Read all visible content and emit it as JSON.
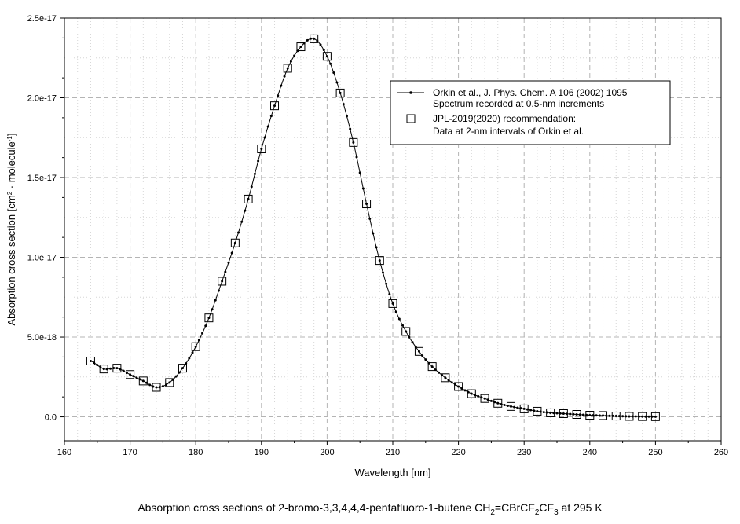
{
  "chart_data": {
    "type": "line",
    "title": "",
    "xlabel": "Wavelength [nm]",
    "ylabel": "Absorption cross section [cm2 · molecule-1]",
    "xlim": [
      160,
      260
    ],
    "ylim": [
      -1.5e-18,
      2.5e-17
    ],
    "x_ticks": [
      160,
      170,
      180,
      190,
      200,
      210,
      220,
      230,
      240,
      250,
      260
    ],
    "x_tick_labels": [
      "160",
      "170",
      "180",
      "190",
      "200",
      "210",
      "220",
      "230",
      "240",
      "250",
      "260"
    ],
    "y_ticks": [
      0,
      5e-18,
      1e-17,
      1.5e-17,
      2e-17,
      2.5e-17
    ],
    "y_tick_labels": [
      "0.0",
      "5.0e-18",
      "1.0e-17",
      "1.5e-17",
      "2.0e-17",
      "2.5e-17"
    ],
    "grid": true,
    "legend_position": "top-right",
    "series": [
      {
        "name": "Orkin et al., J. Phys. Chem. A 106 (2002) 1095",
        "name_line2": "Spectrum recorded at 0.5-nm increments",
        "style": "line-with-small-dots",
        "x": [
          164,
          166,
          168,
          170,
          172,
          174,
          176,
          178,
          180,
          182,
          184,
          186,
          188,
          190,
          192,
          194,
          196,
          198,
          200,
          202,
          204,
          206,
          208,
          210,
          212,
          214,
          216,
          218,
          220,
          222,
          224,
          226,
          228,
          230,
          232,
          234,
          236,
          238,
          240,
          242,
          244,
          246,
          248,
          250
        ],
        "y": [
          3.5e-18,
          3e-18,
          3.05e-18,
          2.65e-18,
          2.25e-18,
          1.85e-18,
          2.15e-18,
          3.05e-18,
          4.4e-18,
          6.2e-18,
          8.5e-18,
          1.09e-17,
          1.365e-17,
          1.68e-17,
          1.95e-17,
          2.185e-17,
          2.32e-17,
          2.37e-17,
          2.26e-17,
          2.03e-17,
          1.72e-17,
          1.335e-17,
          9.8e-18,
          7.1e-18,
          5.35e-18,
          4.1e-18,
          3.15e-18,
          2.45e-18,
          1.9e-18,
          1.45e-18,
          1.15e-18,
          8.5e-19,
          6.5e-19,
          5e-19,
          3.5e-19,
          2.5e-19,
          2e-19,
          1.5e-19,
          1e-19,
          8e-20,
          5e-20,
          3e-20,
          2e-20,
          1e-20
        ]
      },
      {
        "name": "JPL-2019(2020) recommendation:",
        "name_line2": "Data at 2-nm intervals of Orkin et al.",
        "style": "open-squares",
        "x": [
          164,
          166,
          168,
          170,
          172,
          174,
          176,
          178,
          180,
          182,
          184,
          186,
          188,
          190,
          192,
          194,
          196,
          198,
          200,
          202,
          204,
          206,
          208,
          210,
          212,
          214,
          216,
          218,
          220,
          222,
          224,
          226,
          228,
          230,
          232,
          234,
          236,
          238,
          240,
          242,
          244,
          246,
          248,
          250
        ],
        "y": [
          3.5e-18,
          3e-18,
          3.05e-18,
          2.65e-18,
          2.25e-18,
          1.85e-18,
          2.15e-18,
          3.05e-18,
          4.4e-18,
          6.2e-18,
          8.5e-18,
          1.09e-17,
          1.365e-17,
          1.68e-17,
          1.95e-17,
          2.185e-17,
          2.32e-17,
          2.37e-17,
          2.26e-17,
          2.03e-17,
          1.72e-17,
          1.335e-17,
          9.8e-18,
          7.1e-18,
          5.35e-18,
          4.1e-18,
          3.15e-18,
          2.45e-18,
          1.9e-18,
          1.45e-18,
          1.15e-18,
          8.5e-19,
          6.5e-19,
          5e-19,
          3.5e-19,
          2.5e-19,
          2e-19,
          1.5e-19,
          1e-19,
          8e-20,
          5e-20,
          3e-20,
          2e-20,
          1e-20
        ]
      }
    ]
  },
  "caption": {
    "text_before": "Absorption cross sections of 2-bromo-3,3,4,4,4-pentafluoro-1-butene CH",
    "sub1": "2",
    "mid1": "=CBrCF",
    "sub2": "2",
    "mid2": "CF",
    "sub3": "3",
    "text_after": " at 295 K"
  },
  "colors": {
    "line": "#000000",
    "grid_major": "#b4b4b4",
    "grid_minor": "#d6d6d6"
  }
}
